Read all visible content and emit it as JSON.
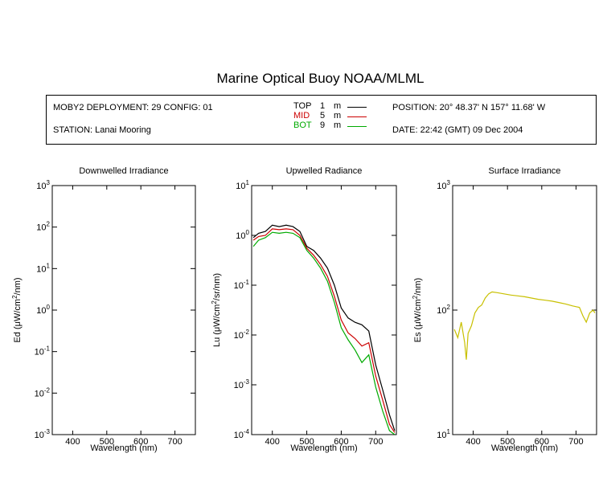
{
  "title": "Marine Optical Buoy NOAA/MLML",
  "info": {
    "deployment": "MOBY2 DEPLOYMENT: 29 CONFIG: 01",
    "station": "STATION: Lanai Mooring",
    "position": "POSITION: 20° 48.37' N   157° 11.68' W",
    "date": "DATE: 22:42 (GMT) 09 Dec 2004",
    "legend": [
      {
        "name": "TOP",
        "depth": "1",
        "unit": "m",
        "color": "#000000"
      },
      {
        "name": "MID",
        "depth": "5",
        "unit": "m",
        "color": "#cc0000"
      },
      {
        "name": "BOT",
        "depth": "9",
        "unit": "m",
        "color": "#00aa00"
      }
    ]
  },
  "chart_data": [
    {
      "type": "line",
      "title": "Downwelled Irradiance",
      "xlabel": "Wavelength (nm)",
      "ylabel_prefix": "Ed  (μW/cm",
      "ylabel_sup": "2",
      "ylabel_suffix": "/nm)",
      "xlim": [
        340,
        760
      ],
      "ylim": [
        0.001,
        1000
      ],
      "yscale": "log",
      "xticks": [
        400,
        500,
        600,
        700
      ],
      "yticks": [
        {
          "v": 0.001,
          "m": "10",
          "e": "-3"
        },
        {
          "v": 0.01,
          "m": "10",
          "e": "-2"
        },
        {
          "v": 0.1,
          "m": "10",
          "e": "-1"
        },
        {
          "v": 1,
          "m": "10",
          "e": "0"
        },
        {
          "v": 10,
          "m": "10",
          "e": "1"
        },
        {
          "v": 100,
          "m": "10",
          "e": "2"
        },
        {
          "v": 1000,
          "m": "10",
          "e": "3"
        }
      ],
      "series": []
    },
    {
      "type": "line",
      "title": "Upwelled Radiance",
      "xlabel": "Wavelength (nm)",
      "ylabel_prefix": "Lu  (μW/cm",
      "ylabel_sup": "2",
      "ylabel_suffix": "/sr/nm)",
      "xlim": [
        340,
        760
      ],
      "ylim": [
        0.0001,
        10
      ],
      "yscale": "log",
      "xticks": [
        400,
        500,
        600,
        700
      ],
      "yticks": [
        {
          "v": 0.0001,
          "m": "10",
          "e": "-4"
        },
        {
          "v": 0.001,
          "m": "10",
          "e": "-3"
        },
        {
          "v": 0.01,
          "m": "10",
          "e": "-2"
        },
        {
          "v": 0.1,
          "m": "10",
          "e": "-1"
        },
        {
          "v": 1,
          "m": "10",
          "e": "0"
        },
        {
          "v": 10,
          "m": "10",
          "e": "1"
        }
      ],
      "series": [
        {
          "name": "TOP",
          "color": "#000000",
          "x": [
            345,
            360,
            380,
            400,
            420,
            440,
            460,
            480,
            500,
            520,
            540,
            560,
            580,
            600,
            620,
            640,
            660,
            680,
            700,
            720,
            740,
            755
          ],
          "y": [
            0.9,
            1.1,
            1.2,
            1.6,
            1.5,
            1.6,
            1.5,
            1.2,
            0.6,
            0.5,
            0.35,
            0.22,
            0.1,
            0.035,
            0.022,
            0.018,
            0.016,
            0.012,
            0.0025,
            0.0008,
            0.00025,
            0.00012
          ]
        },
        {
          "name": "MID",
          "color": "#cc0000",
          "x": [
            345,
            360,
            380,
            400,
            420,
            440,
            460,
            480,
            500,
            520,
            540,
            560,
            580,
            600,
            620,
            640,
            660,
            680,
            700,
            720,
            740,
            755
          ],
          "y": [
            0.8,
            0.95,
            1.0,
            1.35,
            1.3,
            1.35,
            1.3,
            1.0,
            0.55,
            0.4,
            0.26,
            0.15,
            0.06,
            0.02,
            0.011,
            0.0085,
            0.006,
            0.007,
            0.0015,
            0.0005,
            0.00016,
            0.00011
          ]
        },
        {
          "name": "BOT",
          "color": "#00aa00",
          "x": [
            345,
            360,
            380,
            400,
            420,
            440,
            460,
            480,
            500,
            520,
            540,
            560,
            580,
            600,
            620,
            640,
            660,
            680,
            700,
            720,
            740,
            755
          ],
          "y": [
            0.6,
            0.8,
            0.9,
            1.15,
            1.1,
            1.15,
            1.1,
            0.9,
            0.5,
            0.35,
            0.22,
            0.12,
            0.045,
            0.014,
            0.008,
            0.005,
            0.0028,
            0.004,
            0.0009,
            0.0003,
            0.00012,
            0.0001
          ]
        }
      ]
    },
    {
      "type": "line",
      "title": "Surface Irradiance",
      "xlabel": "Wavelength (nm)",
      "ylabel_prefix": "Es  (μW/cm",
      "ylabel_sup": "2",
      "ylabel_suffix": "/nm)",
      "xlim": [
        340,
        760
      ],
      "ylim": [
        10,
        1000
      ],
      "yscale": "log",
      "xticks": [
        400,
        500,
        600,
        700
      ],
      "yticks": [
        {
          "v": 10,
          "m": "10",
          "e": "1"
        },
        {
          "v": 100,
          "m": "10",
          "e": "2"
        },
        {
          "v": 1000,
          "m": "10",
          "e": "3"
        }
      ],
      "series": [
        {
          "name": "",
          "color": "#c8c000",
          "x": [
            345,
            355,
            365,
            375,
            380,
            385,
            395,
            405,
            415,
            425,
            435,
            445,
            455,
            470,
            490,
            510,
            530,
            550,
            570,
            590,
            610,
            630,
            650,
            670,
            690,
            710,
            720,
            730,
            740,
            750,
            755
          ],
          "y": [
            70,
            60,
            80,
            55,
            40,
            65,
            75,
            95,
            105,
            110,
            125,
            135,
            140,
            138,
            135,
            132,
            130,
            128,
            125,
            122,
            120,
            118,
            115,
            112,
            108,
            105,
            90,
            80,
            95,
            100,
            95
          ]
        }
      ]
    }
  ]
}
